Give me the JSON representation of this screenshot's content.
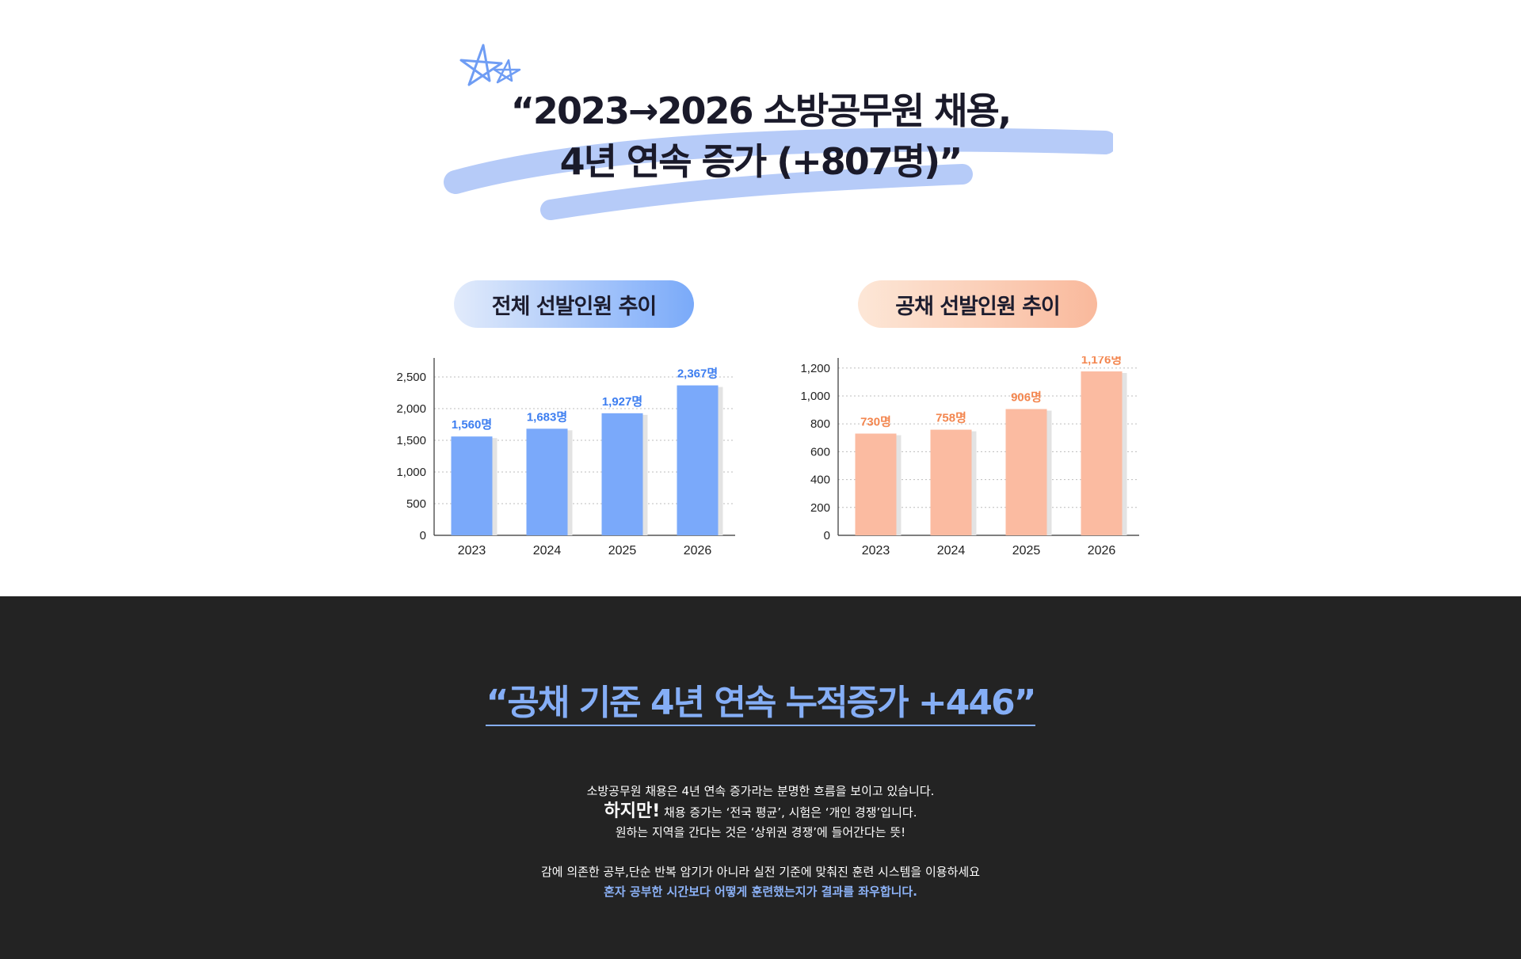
{
  "headline": {
    "line1": "“2023→2026 소방공무원 채용,",
    "line2": "4년 연속 증가 (+807명)”"
  },
  "colors": {
    "blue": "#7aa9fa",
    "orange": "#fbbba1",
    "blue_label": "#3d7ef0",
    "orange_label": "#f3864f",
    "dark_bg": "#232323",
    "highlight": "#85aef6"
  },
  "charts": {
    "left_title": "전체 선발인원 추이",
    "right_title": "공채 선발인원 추이"
  },
  "chart_data": [
    {
      "type": "bar",
      "title": "전체 선발인원 추이",
      "categories": [
        "2023",
        "2024",
        "2025",
        "2026"
      ],
      "values": [
        1560,
        1683,
        1927,
        2367
      ],
      "value_labels": [
        "1,560명",
        "1,683명",
        "1,927명",
        "2,367명"
      ],
      "yticks": [
        0,
        500,
        1000,
        1500,
        2000,
        2500
      ],
      "ytick_labels": [
        "0",
        "500",
        "1,000",
        "1,500",
        "2,000",
        "2,500"
      ],
      "ylim": [
        0,
        2750
      ],
      "color": "#7aa9fa",
      "label_color": "#3d7ef0",
      "grid": true
    },
    {
      "type": "bar",
      "title": "공채 선발인원 추이",
      "categories": [
        "2023",
        "2024",
        "2025",
        "2026"
      ],
      "values": [
        730,
        758,
        906,
        1176
      ],
      "value_labels": [
        "730명",
        "758명",
        "906명",
        "1,176명"
      ],
      "yticks": [
        0,
        200,
        400,
        600,
        800,
        1000,
        1200
      ],
      "ytick_labels": [
        "0",
        "200",
        "400",
        "600",
        "800",
        "1,000",
        "1,200"
      ],
      "ylim": [
        0,
        1250
      ],
      "color": "#fbbba1",
      "label_color": "#f3864f",
      "grid": true
    }
  ],
  "bottom": {
    "quote": "“공채 기준 4년 연속 누적증가 +446”",
    "line1": "소방공무원 채용은 4년 연속 증가라는 분명한 흐름을 보이고 있습니다.",
    "line2_em": "하지만!",
    "line2_rest": " 채용 증가는 ‘전국 평균’, 시험은 ‘개인 경쟁’입니다.",
    "line3": "원하는 지역을 간다는 것은 ‘상위권 경쟁’에 들어간다는 뜻!",
    "line4": "감에 의존한 공부,단순 반복 암기가 아니라 실전 기준에 맞춰진 훈련 시스템을 이용하세요",
    "line5": "혼자 공부한 시간보다 어떻게 훈련했는지가 결과를 좌우합니다."
  }
}
